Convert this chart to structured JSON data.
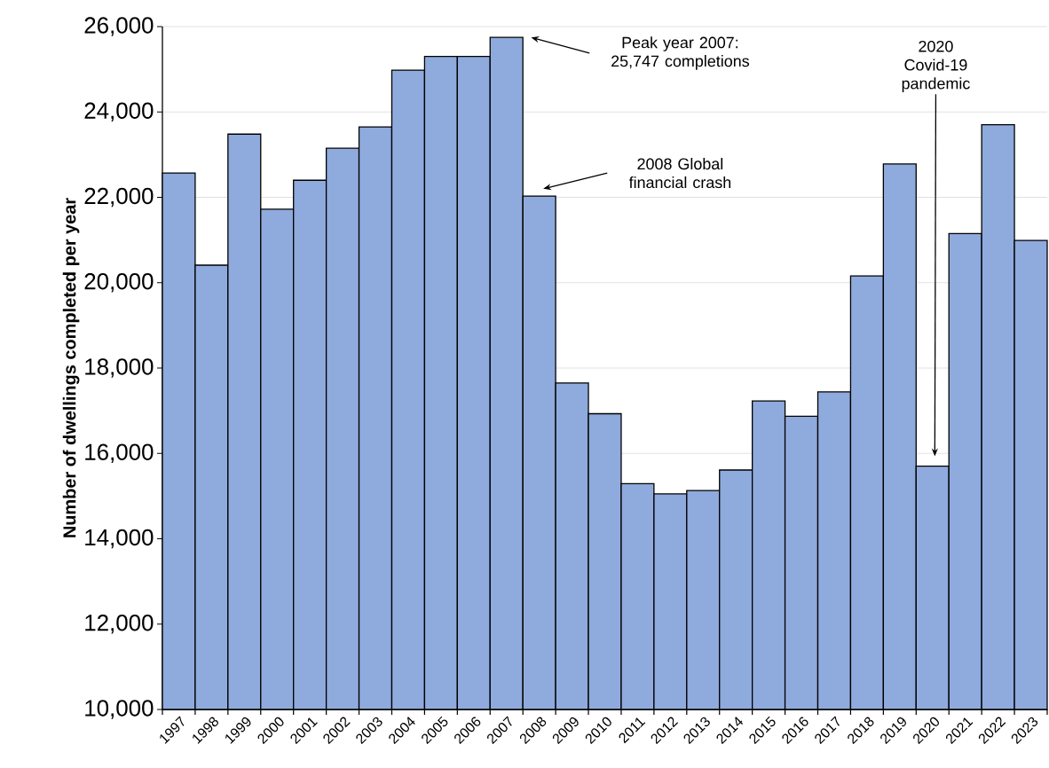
{
  "chart_data": {
    "type": "bar",
    "ylabel": "Number of dwellings completed per year",
    "categories": [
      "1997",
      "1998",
      "1999",
      "2000",
      "2001",
      "2002",
      "2003",
      "2004",
      "2005",
      "2006",
      "2007",
      "2008",
      "2009",
      "2010",
      "2011",
      "2012",
      "2013",
      "2014",
      "2015",
      "2016",
      "2017",
      "2018",
      "2019",
      "2020",
      "2021",
      "2022",
      "2023"
    ],
    "values": [
      22570,
      20410,
      23480,
      21720,
      22400,
      23150,
      23650,
      24980,
      25300,
      25300,
      25747,
      22030,
      17650,
      16930,
      15290,
      15050,
      15130,
      15610,
      17230,
      16870,
      17440,
      20160,
      22780,
      15700,
      21150,
      23700,
      20990
    ],
    "color": "#8faadc",
    "ylim": [
      10000,
      26000
    ],
    "yticks": [
      {
        "value": 10000,
        "label": "10,000"
      },
      {
        "value": 12000,
        "label": "12,000"
      },
      {
        "value": 14000,
        "label": "14,000"
      },
      {
        "value": 16000,
        "label": "16,000"
      },
      {
        "value": 18000,
        "label": "18,000"
      },
      {
        "value": 20000,
        "label": "20,000"
      },
      {
        "value": 22000,
        "label": "22,000"
      },
      {
        "value": 24000,
        "label": "24,000"
      },
      {
        "value": 26000,
        "label": "26,000"
      }
    ],
    "grid": "y",
    "annotations": [
      "Peak year 2007: 25,747 completions",
      "2008 Global financial crash",
      "2020 Covid-19 pandemic"
    ]
  }
}
